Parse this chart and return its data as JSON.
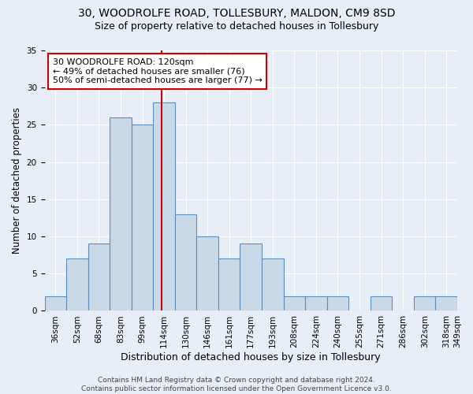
{
  "title1": "30, WOODROLFE ROAD, TOLLESBURY, MALDON, CM9 8SD",
  "title2": "Size of property relative to detached houses in Tollesbury",
  "xlabel": "Distribution of detached houses by size in Tollesbury",
  "ylabel": "Number of detached properties",
  "bar_values": [
    2,
    7,
    9,
    26,
    25,
    28,
    13,
    10,
    7,
    9,
    7,
    2,
    2,
    2,
    0,
    2,
    0,
    2,
    2
  ],
  "bar_center_labels": [
    "36sqm",
    "52sqm",
    "68sqm",
    "83sqm",
    "99sqm",
    "114sqm",
    "130sqm",
    "146sqm",
    "161sqm",
    "177sqm",
    "193sqm",
    "208sqm",
    "224sqm",
    "240sqm",
    "255sqm",
    "271sqm",
    "286sqm",
    "302sqm",
    "318sqm"
  ],
  "last_label": "349sqm",
  "bar_color": "#c9d9e8",
  "bar_edge_color": "#5b8db8",
  "background_color": "#e8eef5",
  "grid_color": "#ffffff",
  "vline_color": "#cc0000",
  "annotation_text": "30 WOODROLFE ROAD: 120sqm\n← 49% of detached houses are smaller (76)\n50% of semi-detached houses are larger (77) →",
  "annotation_box_color": "#ffffff",
  "annotation_box_edge": "#cc0000",
  "ylim": [
    0,
    35
  ],
  "yticks": [
    0,
    5,
    10,
    15,
    20,
    25,
    30,
    35
  ],
  "footer": "Contains HM Land Registry data © Crown copyright and database right 2024.\nContains public sector information licensed under the Open Government Licence v3.0.",
  "title1_fontsize": 10,
  "title2_fontsize": 9,
  "xlabel_fontsize": 9,
  "ylabel_fontsize": 8.5,
  "tick_fontsize": 7.5,
  "annotation_fontsize": 8,
  "footer_fontsize": 6.5
}
